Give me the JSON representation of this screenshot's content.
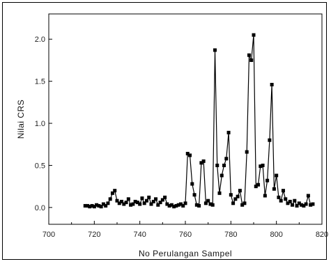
{
  "chart_data": {
    "type": "line",
    "title": "",
    "xlabel": "No Perulangan Sampel",
    "ylabel": "Nilai CRS",
    "xlim": [
      700,
      820
    ],
    "ylim": [
      -0.2,
      2.3
    ],
    "xticks": [
      700,
      720,
      740,
      760,
      780,
      800,
      820
    ],
    "yticks": [
      0.0,
      0.5,
      1.0,
      1.5,
      2.0
    ],
    "xtick_labels": [
      "700",
      "720",
      "740",
      "760",
      "780",
      "800",
      "820"
    ],
    "ytick_labels": [
      "0.0",
      "0.5",
      "1.0",
      "1.5",
      "2.0"
    ],
    "marker": "square",
    "grid": false,
    "series": [
      {
        "x": [
          716,
          717,
          718,
          719,
          720,
          721,
          722,
          723,
          724,
          725,
          726,
          727,
          728,
          729,
          730,
          731,
          732,
          733,
          734,
          735,
          736,
          737,
          738,
          739,
          740,
          741,
          742,
          743,
          744,
          745,
          746,
          747,
          748,
          749,
          750,
          751,
          752,
          753,
          754,
          755,
          756,
          757,
          758,
          759,
          760,
          761,
          762,
          763,
          764,
          765,
          766,
          767,
          768,
          769,
          770,
          771,
          772,
          773,
          774,
          775,
          776,
          777,
          778,
          779,
          780,
          781,
          782,
          783,
          784,
          785,
          786,
          787,
          788,
          789,
          790,
          791,
          792,
          793,
          794,
          795,
          796,
          797,
          798,
          799,
          800,
          801,
          802,
          803,
          804,
          805,
          806,
          807,
          808,
          809,
          810,
          811,
          812,
          813,
          814,
          815,
          816
        ],
        "y": [
          0.02,
          0.02,
          0.01,
          0.02,
          0.01,
          0.03,
          0.02,
          0.01,
          0.04,
          0.02,
          0.05,
          0.1,
          0.17,
          0.2,
          0.08,
          0.05,
          0.07,
          0.04,
          0.06,
          0.1,
          0.03,
          0.04,
          0.07,
          0.06,
          0.04,
          0.11,
          0.05,
          0.08,
          0.12,
          0.04,
          0.07,
          0.1,
          0.03,
          0.06,
          0.09,
          0.12,
          0.04,
          0.02,
          0.03,
          0.01,
          0.02,
          0.03,
          0.04,
          0.02,
          0.05,
          0.64,
          0.62,
          0.28,
          0.15,
          0.03,
          0.02,
          0.53,
          0.55,
          0.05,
          0.08,
          0.04,
          0.03,
          1.87,
          0.5,
          0.17,
          0.38,
          0.5,
          0.58,
          0.89,
          0.15,
          0.05,
          0.1,
          0.13,
          0.2,
          0.03,
          0.05,
          0.66,
          1.81,
          1.75,
          2.05,
          0.25,
          0.27,
          0.49,
          0.5,
          0.14,
          0.32,
          0.8,
          1.46,
          0.22,
          0.38,
          0.12,
          0.08,
          0.2,
          0.1,
          0.05,
          0.07,
          0.03,
          0.08,
          0.02,
          0.05,
          0.03,
          0.02,
          0.04,
          0.14,
          0.03,
          0.04
        ]
      }
    ]
  }
}
